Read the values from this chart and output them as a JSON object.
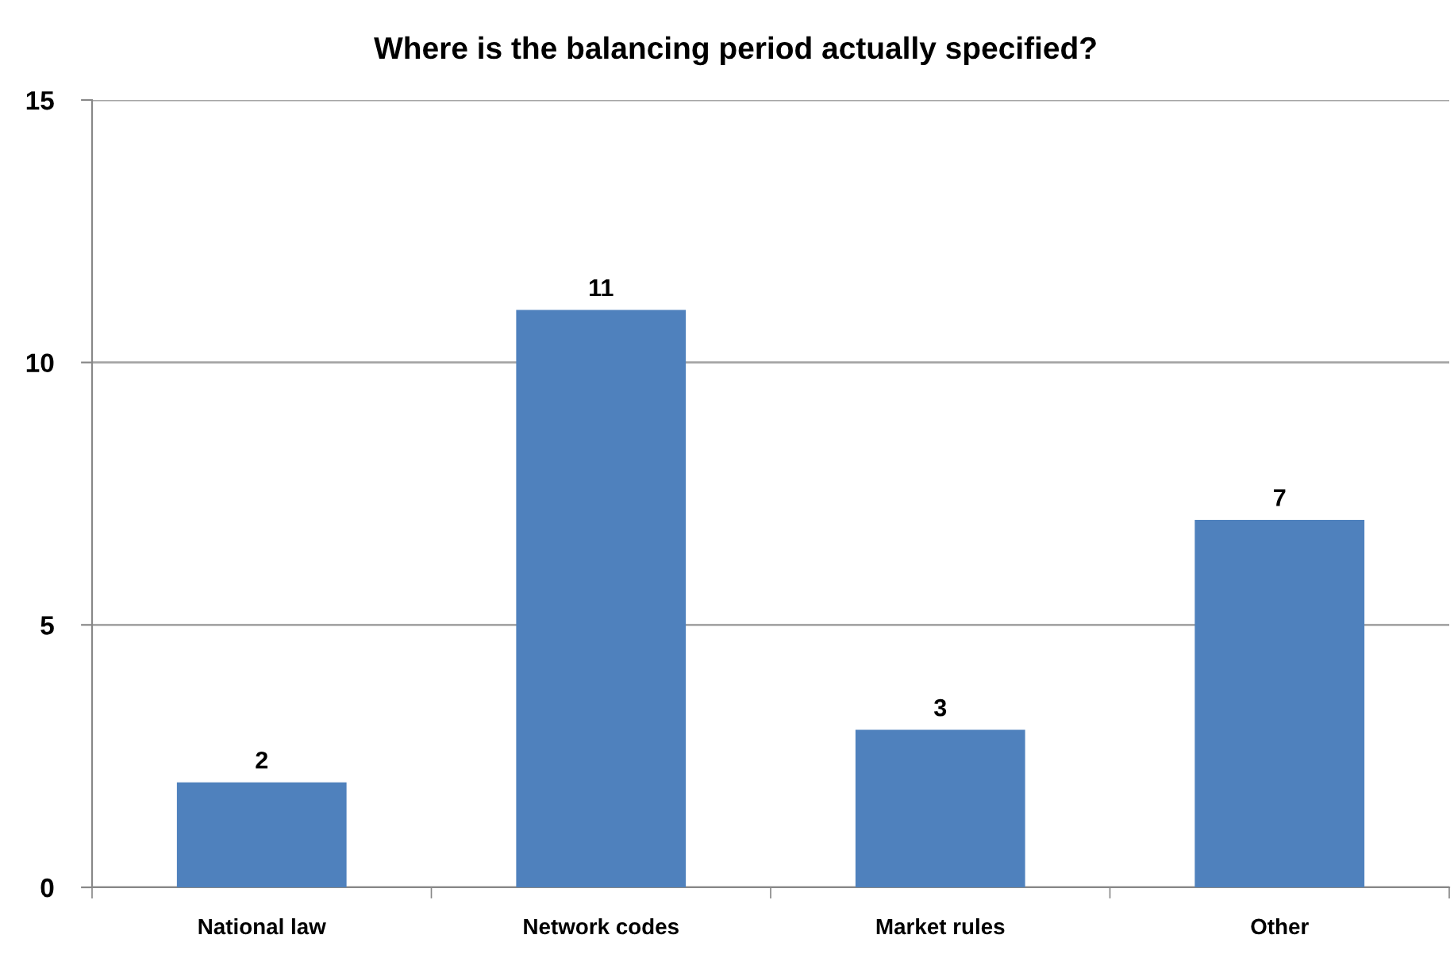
{
  "chart_data": {
    "type": "bar",
    "title": "Where is the balancing period actually specified?",
    "categories": [
      "National law",
      "Network codes",
      "Market rules",
      "Other"
    ],
    "values": [
      2,
      11,
      3,
      7
    ],
    "color": "#4f81bd",
    "ylim": [
      0,
      15
    ],
    "yticks": [
      0,
      5,
      10,
      15
    ],
    "grid": "y",
    "data_labels": true
  }
}
